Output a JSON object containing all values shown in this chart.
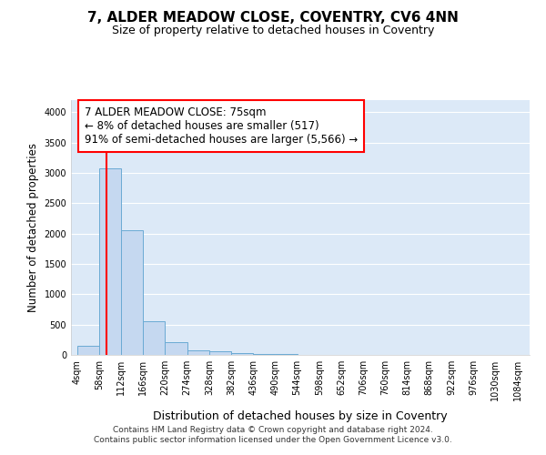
{
  "title": "7, ALDER MEADOW CLOSE, COVENTRY, CV6 4NN",
  "subtitle": "Size of property relative to detached houses in Coventry",
  "xlabel": "Distribution of detached houses by size in Coventry",
  "ylabel": "Number of detached properties",
  "bar_edges": [
    4,
    58,
    112,
    166,
    220,
    274,
    328,
    382,
    436,
    490,
    544,
    598,
    652,
    706,
    760,
    814,
    868,
    922,
    976,
    1030,
    1084
  ],
  "bar_heights": [
    155,
    3070,
    2060,
    560,
    210,
    75,
    55,
    30,
    20,
    10,
    5,
    3,
    2,
    1,
    1,
    0,
    0,
    0,
    0,
    0
  ],
  "bar_color": "#c5d8f0",
  "bar_edge_color": "#6aaad4",
  "red_line_x": 75,
  "ylim": [
    0,
    4200
  ],
  "yticks": [
    0,
    500,
    1000,
    1500,
    2000,
    2500,
    3000,
    3500,
    4000
  ],
  "annotation_title": "7 ALDER MEADOW CLOSE: 75sqm",
  "annotation_line1": "← 8% of detached houses are smaller (517)",
  "annotation_line2": "91% of semi-detached houses are larger (5,566) →",
  "footer_line1": "Contains HM Land Registry data © Crown copyright and database right 2024.",
  "footer_line2": "Contains public sector information licensed under the Open Government Licence v3.0.",
  "bg_color": "#dce9f7",
  "plot_bg_color": "#dce9f7",
  "fig_bg_color": "#ffffff",
  "grid_color": "#ffffff"
}
